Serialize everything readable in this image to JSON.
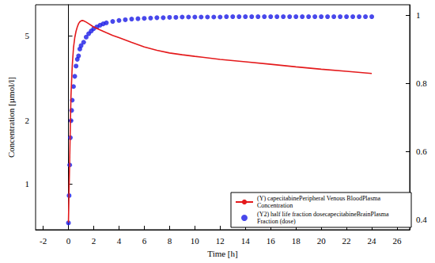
{
  "chart_data": {
    "type": "line",
    "x_label": "Time [h]",
    "y_label": "Concentration [µmol/l]",
    "xlim": [
      -2.6,
      27
    ],
    "xticks": [
      -2,
      0,
      2,
      4,
      6,
      8,
      10,
      12,
      14,
      16,
      18,
      20,
      22,
      24,
      26
    ],
    "ylim": [
      0.61,
      7
    ],
    "yticks": [
      1,
      2,
      5
    ],
    "y2lim": [
      0.37,
      1.03
    ],
    "y2ticks": [
      0.4,
      0.6,
      0.8,
      1
    ],
    "log": "y",
    "grid": false,
    "legend": "bottom-right",
    "series": [
      {
        "name": "(Y) capecitabinePeripheral Venous BloodPlasma Concentration",
        "color": "#e41a1c",
        "type": "line",
        "marker": "none",
        "line_style": "solid",
        "axis": "y",
        "x": [
          0,
          0.05,
          0.1,
          0.15,
          0.2,
          0.3,
          0.4,
          0.5,
          0.6,
          0.7,
          0.8,
          0.9,
          1,
          1.1,
          1.2,
          1.4,
          1.6,
          1.8,
          2,
          2.5,
          3,
          3.5,
          4,
          5,
          6,
          7,
          8,
          9,
          10,
          12,
          14,
          16,
          18,
          20,
          22,
          24
        ],
        "values": [
          0.66,
          0.95,
          1.31,
          1.9,
          2.6,
          3.6,
          4.4,
          4.9,
          5.25,
          5.5,
          5.7,
          5.82,
          5.88,
          5.9,
          5.88,
          5.8,
          5.7,
          5.6,
          5.5,
          5.33,
          5.17,
          5.02,
          4.9,
          4.65,
          4.43,
          4.27,
          4.15,
          4.07,
          4.0,
          3.87,
          3.77,
          3.67,
          3.57,
          3.48,
          3.4,
          3.32
        ]
      },
      {
        "name": "(Y2) half life fraction dosecapecitabineBrainPlasma Fraction (dose)",
        "color": "#1a1ae6",
        "type": "scatter",
        "marker": "circle",
        "axis": "y2",
        "x": [
          0,
          0.05,
          0.1,
          0.15,
          0.2,
          0.25,
          0.3,
          0.4,
          0.5,
          0.6,
          0.7,
          0.8,
          0.9,
          1,
          1.2,
          1.4,
          1.6,
          1.8,
          2,
          2.25,
          2.5,
          2.75,
          3,
          3.5,
          4,
          4.5,
          5,
          5.5,
          6,
          6.5,
          7,
          7.5,
          8,
          8.5,
          9,
          9.5,
          10,
          10.5,
          11,
          11.5,
          12,
          12.5,
          13,
          13.5,
          14,
          14.5,
          15,
          15.5,
          16,
          16.5,
          17,
          17.5,
          18,
          18.5,
          19,
          19.5,
          20,
          20.5,
          21,
          21.5,
          22,
          22.5,
          23,
          23.5,
          24
        ],
        "values": [
          0.39,
          0.47,
          0.56,
          0.64,
          0.69,
          0.72,
          0.75,
          0.79,
          0.82,
          0.85,
          0.87,
          0.88,
          0.9,
          0.91,
          0.92,
          0.935,
          0.945,
          0.953,
          0.96,
          0.965,
          0.97,
          0.974,
          0.977,
          0.981,
          0.984,
          0.986,
          0.988,
          0.989,
          0.99,
          0.991,
          0.992,
          0.992,
          0.993,
          0.993,
          0.994,
          0.994,
          0.994,
          0.994,
          0.994,
          0.994,
          0.994,
          0.995,
          0.995,
          0.995,
          0.995,
          0.995,
          0.995,
          0.995,
          0.995,
          0.995,
          0.995,
          0.995,
          0.995,
          0.995,
          0.995,
          0.995,
          0.995,
          0.995,
          0.995,
          0.995,
          0.995,
          0.995,
          0.995,
          0.995,
          0.995
        ]
      }
    ]
  }
}
